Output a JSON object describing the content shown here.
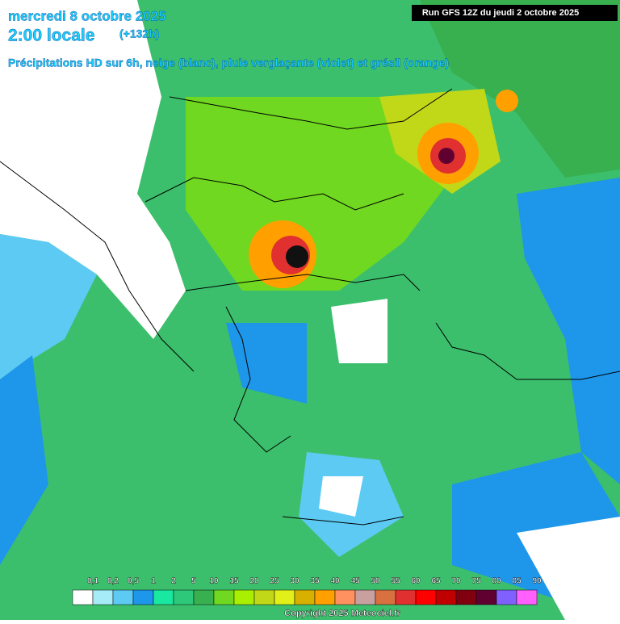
{
  "header": {
    "date": "mercredi 8 octobre 2025",
    "time": "2:00 locale",
    "offset": "(+132h)",
    "subtitle": "Précipitations HD sur 6h, neige (blanc), pluie verglaçante (violet) et grésil (orange)",
    "run": "Run GFS 12Z du jeudi 2 octobre 2025"
  },
  "legend": {
    "labels": [
      "0,1",
      "0,2",
      "0,5",
      "1",
      "2",
      "5",
      "10",
      "15",
      "20",
      "25",
      "30",
      "35",
      "40",
      "45",
      "50",
      "55",
      "60",
      "65",
      "70",
      "75",
      "80",
      "85",
      "90"
    ],
    "colors": [
      "#ffffff",
      "#a6ecf8",
      "#5ccaf2",
      "#1e96ea",
      "#18e8a0",
      "#2ec87a",
      "#38b050",
      "#70d820",
      "#a8f000",
      "#c0d818",
      "#e0f018",
      "#d8b000",
      "#ffa000",
      "#ff9060",
      "#c8a0a0",
      "#d87040",
      "#e03030",
      "#ff0000",
      "#c00000",
      "#800010",
      "#600030",
      "#8060ff",
      "#ff60ff"
    ]
  },
  "footer": {
    "copyright": "Copyright 2025 Meteociel.fr"
  }
}
